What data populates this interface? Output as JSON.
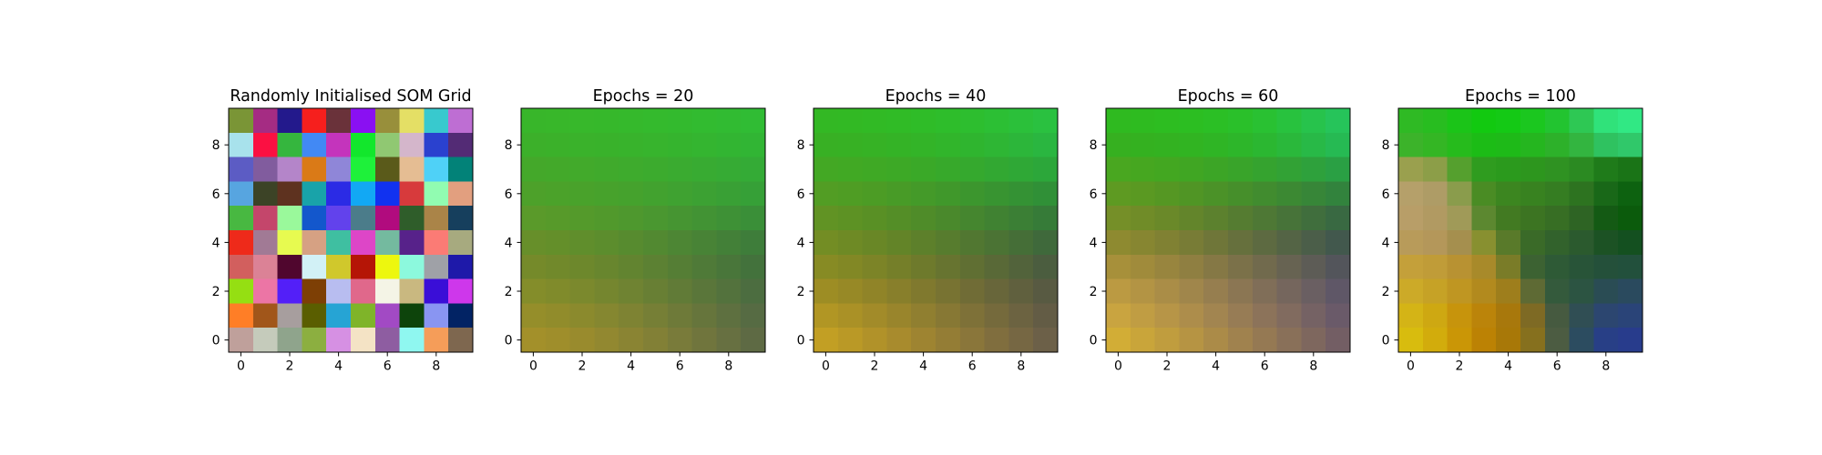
{
  "chart_data": [
    {
      "type": "heatmap",
      "title": "Randomly Initialised SOM Grid",
      "xticks": [
        0,
        2,
        4,
        6,
        8
      ],
      "yticks": [
        0,
        2,
        4,
        6,
        8
      ],
      "grid_size": [
        10,
        10
      ],
      "xlim": [
        -0.5,
        9.5
      ],
      "ylim": [
        9.5,
        -0.5
      ],
      "colors": [
        [
          "#7a9536",
          "#a52c83",
          "#23198c",
          "#f61f1d",
          "#6a323a",
          "#8a10f2",
          "#988f3b",
          "#e4df65",
          "#38c9ce",
          "#be6ed3"
        ],
        [
          "#a8e2ec",
          "#fb1042",
          "#35b63e",
          "#4289f4",
          "#c434bc",
          "#12e72c",
          "#90c872",
          "#d4b6cb",
          "#2a41cf",
          "#532b75"
        ],
        [
          "#5c5cc4",
          "#815c9e",
          "#b485c9",
          "#da7a17",
          "#8f86d8",
          "#1ef13a",
          "#5a5a1a",
          "#e5bd93",
          "#4fd1f7",
          "#028278"
        ],
        [
          "#57a5e0",
          "#3c4326",
          "#5e321f",
          "#19a3a9",
          "#2b2be5",
          "#12a8f4",
          "#1132f0",
          "#d73a3c",
          "#91fcb1",
          "#e29f7f"
        ],
        [
          "#48b841",
          "#c4466b",
          "#9af99b",
          "#1357cc",
          "#6242ec",
          "#4b7c8a",
          "#b10b7e",
          "#2f5d2a",
          "#aa8448",
          "#163f5d"
        ],
        [
          "#ee2a1a",
          "#a17a95",
          "#e7fa50",
          "#d6a183",
          "#3fbfa1",
          "#dd46c7",
          "#74ba9f",
          "#57228a",
          "#fb7b75",
          "#a7aa7f"
        ],
        [
          "#d25f5e",
          "#db8296",
          "#50062e",
          "#d2f1f6",
          "#d0c82c",
          "#b51506",
          "#edf70e",
          "#8cf9dd",
          "#9fa1a7",
          "#1e19a9"
        ],
        [
          "#95df12",
          "#ec75a5",
          "#531ff8",
          "#7d3f05",
          "#b8bdf0",
          "#e0688b",
          "#f4f4e6",
          "#c9b880",
          "#3a0ed7",
          "#ce37eb"
        ],
        [
          "#ff7e26",
          "#a1561a",
          "#a79e9e",
          "#5a5e00",
          "#26a4d4",
          "#7fb429",
          "#a24ac4",
          "#0d440b",
          "#8995f2",
          "#022364"
        ],
        [
          "#bfa09b",
          "#c5cbbb",
          "#8fa48c",
          "#8caf40",
          "#d690e3",
          "#f4e3c5",
          "#8e5da1",
          "#8ff7f0",
          "#f59d59",
          "#7e674f"
        ]
      ]
    },
    {
      "type": "heatmap",
      "title": "Epochs = 20",
      "xticks": [
        0,
        2,
        4,
        6,
        8
      ],
      "yticks": [
        0,
        2,
        4,
        6,
        8
      ],
      "grid_size": [
        10,
        10
      ],
      "xlim": [
        -0.5,
        9.5
      ],
      "ylim": [
        9.5,
        -0.5
      ],
      "colors": [
        [
          "#38b62a",
          "#38b72a",
          "#37b82b",
          "#36b82b",
          "#35b92c",
          "#34ba2d",
          "#33ba2e",
          "#32bb30",
          "#31bb32",
          "#30bc34"
        ],
        [
          "#3cb02a",
          "#3bb12a",
          "#3ab22b",
          "#39b22b",
          "#38b32c",
          "#37b42d",
          "#35b42e",
          "#34b530",
          "#32b532",
          "#31b534"
        ],
        [
          "#44a82a",
          "#43a92a",
          "#42aa2b",
          "#40aa2c",
          "#3eab2d",
          "#3cab2e",
          "#3aab30",
          "#38ab32",
          "#36ab34",
          "#34ab36"
        ],
        [
          "#4da12a",
          "#4ba22a",
          "#49a22b",
          "#47a22c",
          "#45a22d",
          "#42a22f",
          "#3fa231",
          "#3ca133",
          "#39a035",
          "#36a037"
        ],
        [
          "#5a9a2a",
          "#579a2a",
          "#549a2b",
          "#51992c",
          "#4e982e",
          "#4a9730",
          "#469532",
          "#429334",
          "#3e9136",
          "#3a8f38"
        ],
        [
          "#678f2a",
          "#648f2a",
          "#608e2c",
          "#5c8d2d",
          "#578b2f",
          "#528931",
          "#4d8634",
          "#488336",
          "#438038",
          "#3e7d3a"
        ],
        [
          "#758a2a",
          "#71892b",
          "#6d882c",
          "#68862e",
          "#628430",
          "#5c8133",
          "#557e35",
          "#4f7a38",
          "#49763a",
          "#43723c"
        ],
        [
          "#848d2a",
          "#808b2b",
          "#7b892d",
          "#75862f",
          "#6f8332",
          "#687f34",
          "#617b37",
          "#5a763a",
          "#53723d",
          "#4c6d40"
        ],
        [
          "#958e2a",
          "#918c2b",
          "#8b8a2d",
          "#858730",
          "#7e8333",
          "#767f36",
          "#6e7a39",
          "#66753c",
          "#5e7040",
          "#566b43"
        ],
        [
          "#a3902a",
          "#9f8e2b",
          "#998b2d",
          "#928830",
          "#8a8433",
          "#828036",
          "#797b3a",
          "#70753d",
          "#677041",
          "#5e6a44"
        ]
      ]
    },
    {
      "type": "heatmap",
      "title": "Epochs = 40",
      "xticks": [
        0,
        2,
        4,
        6,
        8
      ],
      "yticks": [
        0,
        2,
        4,
        6,
        8
      ],
      "grid_size": [
        10,
        10
      ],
      "xlim": [
        -0.5,
        9.5
      ],
      "ylim": [
        9.5,
        -0.5
      ],
      "colors": [
        [
          "#33b824",
          "#32b924",
          "#31ba25",
          "#30bb26",
          "#2fbc28",
          "#2ebd2b",
          "#2dbe2f",
          "#2cbf34",
          "#2bc03a",
          "#2ac140"
        ],
        [
          "#38b024",
          "#37b124",
          "#36b225",
          "#34b326",
          "#33b428",
          "#31b52b",
          "#2fb52f",
          "#2eb634",
          "#2cb63a",
          "#2ab640"
        ],
        [
          "#43a824",
          "#41a924",
          "#3fa925",
          "#3da926",
          "#3aa928",
          "#37a92b",
          "#35a92e",
          "#32a832",
          "#2fa836",
          "#2ca73a"
        ],
        [
          "#529d24",
          "#4f9d24",
          "#4c9c25",
          "#489b27",
          "#449a29",
          "#40982b",
          "#3c962e",
          "#389431",
          "#349234",
          "#309037"
        ],
        [
          "#619324",
          "#5d9224",
          "#599025",
          "#548e27",
          "#4f8c29",
          "#4a892c",
          "#45862f",
          "#408232",
          "#3b7f35",
          "#367b38"
        ],
        [
          "#738d24",
          "#6e8a25",
          "#698726",
          "#638428",
          "#5d802b",
          "#577c2e",
          "#517731",
          "#4b7334",
          "#456e37",
          "#3f693b"
        ],
        [
          "#878b24",
          "#828825",
          "#7c8427",
          "#757f29",
          "#6e7a2c",
          "#677430",
          "#606f33",
          "#596937",
          "#52633b",
          "#4b5d3f"
        ],
        [
          "#9d8d24",
          "#978926",
          "#908428",
          "#887f2b",
          "#80792e",
          "#787332",
          "#706c36",
          "#68663a",
          "#60603e",
          "#585a42"
        ],
        [
          "#b19624",
          "#aa9126",
          "#a28b29",
          "#99852c",
          "#907f30",
          "#877834",
          "#7e7138",
          "#756a3c",
          "#6c6341",
          "#635c45"
        ],
        [
          "#c29f24",
          "#ba9926",
          "#b19229",
          "#a88b2d",
          "#9e8431",
          "#947d35",
          "#8a763a",
          "#806e3e",
          "#766743",
          "#6c6048"
        ]
      ]
    },
    {
      "type": "heatmap",
      "title": "Epochs = 60",
      "xticks": [
        0,
        2,
        4,
        6,
        8
      ],
      "yticks": [
        0,
        2,
        4,
        6,
        8
      ],
      "grid_size": [
        10,
        10
      ],
      "xlim": [
        -0.5,
        9.5
      ],
      "ylim": [
        9.5,
        -0.5
      ],
      "colors": [
        [
          "#2fba20",
          "#2ebb20",
          "#2dbd21",
          "#2cbe22",
          "#2bbf25",
          "#2ac02a",
          "#29c132",
          "#28c23e",
          "#27c34c",
          "#26c45a"
        ],
        [
          "#36b020",
          "#34b120",
          "#33b221",
          "#31b422",
          "#2fb525",
          "#2db62a",
          "#2bb731",
          "#2ab83b",
          "#28b947",
          "#26ba53"
        ],
        [
          "#49a720",
          "#46a720",
          "#43a721",
          "#40a623",
          "#3ca526",
          "#39a42a",
          "#35a32f",
          "#32a235",
          "#2ea13c",
          "#2aa044"
        ],
        [
          "#5e9a22",
          "#5a9922",
          "#559723",
          "#509525",
          "#4b9228",
          "#468f2b",
          "#418c2f",
          "#3c8933",
          "#378638",
          "#32833d"
        ],
        [
          "#758f28",
          "#708c28",
          "#6a8929",
          "#63852b",
          "#5c812e",
          "#557c31",
          "#4e7835",
          "#477339",
          "#406e3d",
          "#396942"
        ],
        [
          "#8e8a30",
          "#878631",
          "#808133",
          "#787c36",
          "#6f7639",
          "#66703d",
          "#5d6a41",
          "#546445",
          "#4b5e49",
          "#42584d"
        ],
        [
          "#a7903a",
          "#a08b3b",
          "#98853e",
          "#8f7f41",
          "#857845",
          "#7b7149",
          "#716a4d",
          "#676352",
          "#5d5c56",
          "#53555b"
        ],
        [
          "#bb9a42",
          "#b39444",
          "#aa8d47",
          "#a0864b",
          "#967e4f",
          "#8b7653",
          "#806e58",
          "#75665d",
          "#6a5f62",
          "#5f5767"
        ],
        [
          "#c9a440",
          "#c09d43",
          "#b79547",
          "#ad8d4b",
          "#a28550",
          "#977c55",
          "#8c735a",
          "#816b5f",
          "#756264",
          "#6a5a69"
        ],
        [
          "#d2ad36",
          "#c9a53a",
          "#c09d3e",
          "#b69443",
          "#ab8b48",
          "#a0824e",
          "#957953",
          "#897059",
          "#7e675e",
          "#735e64"
        ]
      ]
    },
    {
      "type": "heatmap",
      "title": "Epochs = 100",
      "xticks": [
        0,
        2,
        4,
        6,
        8
      ],
      "yticks": [
        0,
        2,
        4,
        6,
        8
      ],
      "grid_size": [
        10,
        10
      ],
      "xlim": [
        -0.5,
        9.5
      ],
      "ylim": [
        9.5,
        -0.5
      ],
      "colors": [
        [
          "#2fba24",
          "#28bd20",
          "#1bc418",
          "#12c910",
          "#14c915",
          "#1bc71f",
          "#22c430",
          "#2ec854",
          "#30e27a",
          "#31e884"
        ],
        [
          "#3cb32a",
          "#34b624",
          "#26bb1c",
          "#1cbc16",
          "#1eba18",
          "#25b61f",
          "#2db12a",
          "#33b540",
          "#2fc260",
          "#30c86a"
        ],
        [
          "#9aa04e",
          "#8c9e48",
          "#55a02e",
          "#2f9c1f",
          "#2b9a1d",
          "#2d961e",
          "#2f9222",
          "#2b8a22",
          "#1f7b1a",
          "#1a7417"
        ],
        [
          "#b5a06a",
          "#ae9c66",
          "#8a9c4c",
          "#4a8c24",
          "#3c8620",
          "#388220",
          "#357d22",
          "#2d7320",
          "#196818",
          "#0d6210"
        ],
        [
          "#b89e68",
          "#b19a62",
          "#a09a58",
          "#5c8830",
          "#427a22",
          "#3c7422",
          "#376e24",
          "#2e6424",
          "#145a14",
          "#0b5b0c"
        ],
        [
          "#b89b5a",
          "#b4975a",
          "#a58f4e",
          "#889030",
          "#597a2a",
          "#3a6a28",
          "#32622c",
          "#2b5a2e",
          "#1c5224",
          "#145020"
        ],
        [
          "#c4a03a",
          "#c09c38",
          "#b89232",
          "#a88a2a",
          "#7a7c28",
          "#3c6232",
          "#2e5a36",
          "#285438",
          "#24503a",
          "#22503c"
        ],
        [
          "#ccaa28",
          "#c6a226",
          "#bf9622",
          "#b28a1e",
          "#9e7e1c",
          "#5e6a34",
          "#345a3c",
          "#2c5442",
          "#2a4c54",
          "#2a4a5e"
        ],
        [
          "#d4b416",
          "#cea812",
          "#c7940c",
          "#bb840a",
          "#a8780c",
          "#7e6a24",
          "#465a40",
          "#304e54",
          "#2c4670",
          "#2a4478"
        ],
        [
          "#d8bc0e",
          "#d2ac0c",
          "#ca9606",
          "#bc8204",
          "#a87808",
          "#86701e",
          "#4c5c42",
          "#2c4c60",
          "#283f86",
          "#283c8c"
        ]
      ]
    }
  ]
}
